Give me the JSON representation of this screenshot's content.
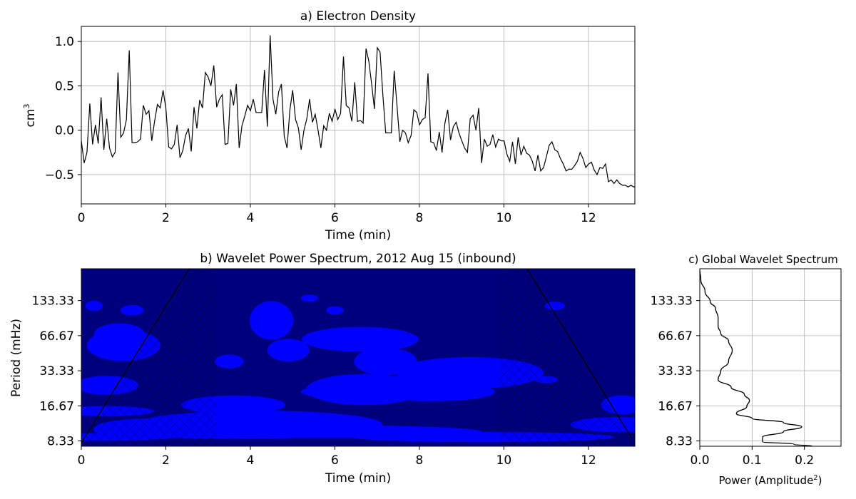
{
  "figure": {
    "background": "#ffffff"
  },
  "chart_data": [
    {
      "id": "a",
      "type": "line",
      "title": "a) Electron Density",
      "xlabel": "Time (min)",
      "ylabel": "cm",
      "ylabel_superscript": "3",
      "xlim": [
        0,
        13.1
      ],
      "ylim": [
        -0.83,
        1.17
      ],
      "xticks": [
        0,
        2,
        4,
        6,
        8,
        10,
        12
      ],
      "xtick_labels": [
        "0",
        "2",
        "4",
        "6",
        "8",
        "10",
        "12"
      ],
      "yticks": [
        -0.5,
        0.0,
        0.5,
        1.0
      ],
      "ytick_labels": [
        "−0.5",
        "0.0",
        "0.5",
        "1.0"
      ],
      "grid": true,
      "line_color": "#000000",
      "x_step": 0.0667,
      "series": [
        {
          "values": [
            -0.12,
            -0.37,
            -0.25,
            0.3,
            -0.16,
            0.06,
            -0.15,
            0.37,
            -0.22,
            0.13,
            -0.2,
            -0.3,
            -0.25,
            0.65,
            -0.08,
            -0.03,
            0.12,
            0.9,
            -0.14,
            -0.14,
            -0.13,
            -0.1,
            0.28,
            0.18,
            0.22,
            -0.12,
            0.1,
            0.29,
            0.25,
            0.45,
            0.25,
            -0.19,
            -0.21,
            -0.16,
            0.06,
            -0.31,
            -0.23,
            -0.06,
            0.02,
            -0.24,
            0.26,
            0.02,
            0.34,
            0.25,
            0.65,
            0.6,
            0.5,
            0.73,
            0.26,
            0.35,
            0.4,
            -0.16,
            -0.15,
            0.46,
            0.28,
            0.52,
            -0.2,
            0.05,
            0.16,
            0.28,
            0.22,
            0.35,
            0.2,
            0.2,
            0.2,
            0.68,
            0.04,
            1.07,
            0.35,
            0.18,
            0.43,
            0.52,
            -0.07,
            -0.2,
            0.23,
            0.45,
            0.12,
            0.03,
            -0.22,
            0.0,
            0.13,
            0.35,
            0.09,
            0.18,
            0.0,
            -0.2,
            0.05,
            0.0,
            0.19,
            0.1,
            0.24,
            0.12,
            0.19,
            0.83,
            0.28,
            0.25,
            0.1,
            0.54,
            0.1,
            0.11,
            0.08,
            0.92,
            0.78,
            0.52,
            0.24,
            0.93,
            0.88,
            0.39,
            -0.03,
            -0.03,
            -0.03,
            0.67,
            0.28,
            -0.13,
            0.0,
            -0.03,
            -0.14,
            -0.06,
            0.23,
            0.2,
            0.06,
            0.12,
            0.14,
            0.64,
            -0.13,
            -0.14,
            -0.23,
            -0.02,
            -0.25,
            0.08,
            0.23,
            -0.11,
            0.04,
            0.09,
            -0.03,
            -0.12,
            -0.2,
            -0.25,
            0.13,
            0.17,
            0.0,
            0.25,
            -0.37,
            -0.1,
            -0.18,
            -0.16,
            -0.05,
            -0.19,
            -0.1,
            -0.12,
            -0.12,
            -0.27,
            -0.35,
            -0.13,
            -0.38,
            -0.08,
            -0.28,
            -0.18,
            -0.26,
            -0.28,
            -0.35,
            -0.46,
            -0.28,
            -0.46,
            -0.42,
            -0.3,
            -0.17,
            -0.13,
            -0.22,
            -0.24,
            -0.32,
            -0.38,
            -0.46,
            -0.44,
            -0.44,
            -0.4,
            -0.35,
            -0.25,
            -0.32,
            -0.42,
            -0.38,
            -0.36,
            -0.45,
            -0.5,
            -0.42,
            -0.43,
            -0.38,
            -0.58,
            -0.56,
            -0.6,
            -0.56,
            -0.6,
            -0.62,
            -0.62,
            -0.64,
            -0.62,
            -0.64,
            -0.63,
            -0.68,
            -0.7,
            -0.72,
            -0.74
          ]
        }
      ]
    },
    {
      "id": "b",
      "type": "heatmap",
      "title": "b) Wavelet Power Spectrum, 2012 Aug 15 (inbound)",
      "xlabel": "Time (min)",
      "ylabel": "Period (mHz)",
      "xlim": [
        0,
        13.1
      ],
      "xticks": [
        0,
        2,
        4,
        6,
        8,
        10,
        12
      ],
      "xtick_labels": [
        "0",
        "2",
        "4",
        "6",
        "8",
        "10",
        "12"
      ],
      "yscale": "log",
      "ylim": [
        7.5,
        250
      ],
      "yticks": [
        8.33,
        16.67,
        33.33,
        66.67,
        133.33
      ],
      "ytick_labels": [
        "8.33",
        "16.67",
        "33.33",
        "66.67",
        "133.33"
      ],
      "colormap": [
        "#00007f",
        "#0000ff",
        "#007fff",
        "#00e5ff",
        "#7fff7f",
        "#ffff00",
        "#ff7f00",
        "#ff0000",
        "#7f0000"
      ],
      "base_level": 0,
      "cone_of_influence_color": "#000000",
      "blobs": [
        {
          "t": 3.0,
          "p": 11.0,
          "st": 0.9,
          "sp": 0.11,
          "level": 8
        },
        {
          "t": 4.2,
          "p": 11.5,
          "st": 1.7,
          "sp": 0.16,
          "level": 4
        },
        {
          "t": 1.5,
          "p": 10.5,
          "st": 0.7,
          "sp": 0.12,
          "level": 4
        },
        {
          "t": 6.0,
          "p": 10.0,
          "st": 2.8,
          "sp": 0.1,
          "level": 2
        },
        {
          "t": 9.5,
          "p": 9.0,
          "st": 2.5,
          "sp": 0.08,
          "level": 2
        },
        {
          "t": 12.7,
          "p": 11.5,
          "st": 0.9,
          "sp": 0.12,
          "level": 2
        },
        {
          "t": 0.5,
          "p": 9.0,
          "st": 1.2,
          "sp": 0.06,
          "level": 2
        },
        {
          "t": 0.9,
          "p": 68,
          "st": 0.35,
          "sp": 0.13,
          "level": 4
        },
        {
          "t": 1.0,
          "p": 55,
          "st": 0.7,
          "sp": 0.25,
          "level": 2
        },
        {
          "t": 0.3,
          "p": 120,
          "st": 0.3,
          "sp": 0.15,
          "level": 1
        },
        {
          "t": 1.2,
          "p": 110,
          "st": 0.4,
          "sp": 0.15,
          "level": 1
        },
        {
          "t": 4.5,
          "p": 90,
          "st": 0.3,
          "sp": 0.22,
          "level": 4
        },
        {
          "t": 4.9,
          "p": 50,
          "st": 0.4,
          "sp": 0.18,
          "level": 2
        },
        {
          "t": 3.5,
          "p": 40,
          "st": 0.5,
          "sp": 0.2,
          "level": 1
        },
        {
          "t": 6.9,
          "p": 60,
          "st": 0.45,
          "sp": 0.1,
          "level": 6
        },
        {
          "t": 6.6,
          "p": 62,
          "st": 0.9,
          "sp": 0.16,
          "level": 3
        },
        {
          "t": 7.2,
          "p": 40,
          "st": 0.6,
          "sp": 0.22,
          "level": 2
        },
        {
          "t": 6.7,
          "p": 23,
          "st": 0.9,
          "sp": 0.2,
          "level": 3
        },
        {
          "t": 5.8,
          "p": 22,
          "st": 0.35,
          "sp": 0.06,
          "level": 4
        },
        {
          "t": 8.3,
          "p": 22,
          "st": 1.2,
          "sp": 0.15,
          "level": 2
        },
        {
          "t": 3.6,
          "p": 17,
          "st": 0.8,
          "sp": 0.12,
          "level": 3
        },
        {
          "t": 0.6,
          "p": 25,
          "st": 0.6,
          "sp": 0.15,
          "level": 2
        },
        {
          "t": 0.6,
          "p": 15,
          "st": 0.9,
          "sp": 0.08,
          "level": 2
        },
        {
          "t": 9.2,
          "p": 32,
          "st": 1.4,
          "sp": 0.25,
          "level": 2
        },
        {
          "t": 5.4,
          "p": 140,
          "st": 0.3,
          "sp": 0.1,
          "level": 1
        },
        {
          "t": 6.0,
          "p": 110,
          "st": 0.3,
          "sp": 0.12,
          "level": 1
        },
        {
          "t": 11.2,
          "p": 120,
          "st": 0.35,
          "sp": 0.12,
          "level": 1
        },
        {
          "t": 12.8,
          "p": 17,
          "st": 0.4,
          "sp": 0.15,
          "level": 2
        },
        {
          "t": 11.0,
          "p": 28,
          "st": 0.4,
          "sp": 0.1,
          "level": 1
        }
      ]
    },
    {
      "id": "c",
      "type": "line",
      "title": "c) Global Wavelet Spectrum",
      "xlabel": "Power (Amplitude",
      "xlabel_superscript": "2",
      "xlabel_suffix": ")",
      "xlim": [
        0,
        0.27
      ],
      "xticks": [
        0.0,
        0.1,
        0.2
      ],
      "xtick_labels": [
        "0.0",
        "0.1",
        "0.2"
      ],
      "yscale": "log",
      "ylim": [
        7.5,
        250
      ],
      "yticks": [
        8.33,
        16.67,
        33.33,
        66.67,
        133.33
      ],
      "ytick_labels": [
        "8.33",
        "16.67",
        "33.33",
        "66.67",
        "133.33"
      ],
      "grid": true,
      "line_color": "#000000",
      "series": [
        {
          "points": [
            [
              0.215,
              7.5
            ],
            [
              0.18,
              7.8
            ],
            [
              0.12,
              8.2
            ],
            [
              0.12,
              9.0
            ],
            [
              0.16,
              10.0
            ],
            [
              0.195,
              11.0
            ],
            [
              0.16,
              12.0
            ],
            [
              0.1,
              13.0
            ],
            [
              0.07,
              14.3
            ],
            [
              0.09,
              16.5
            ],
            [
              0.095,
              18.5
            ],
            [
              0.085,
              21.0
            ],
            [
              0.06,
              24.0
            ],
            [
              0.035,
              28.0
            ],
            [
              0.04,
              33.0
            ],
            [
              0.055,
              40.0
            ],
            [
              0.062,
              50.0
            ],
            [
              0.055,
              60.0
            ],
            [
              0.04,
              70.0
            ],
            [
              0.035,
              80.0
            ],
            [
              0.035,
              95.0
            ],
            [
              0.03,
              115.0
            ],
            [
              0.02,
              130.0
            ],
            [
              0.01,
              160.0
            ],
            [
              0.002,
              200.0
            ],
            [
              0.0,
              250.0
            ]
          ]
        }
      ]
    }
  ]
}
